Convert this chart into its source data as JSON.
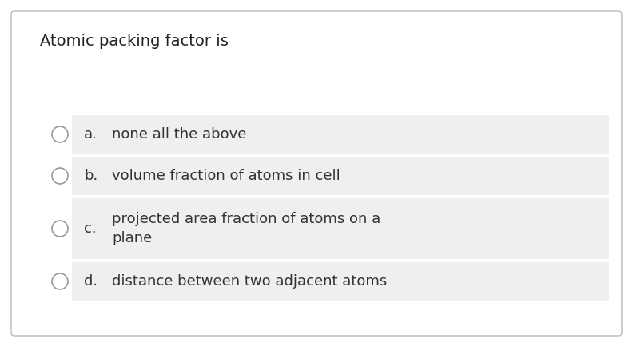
{
  "title": "Atomic packing factor is",
  "options": [
    {
      "label": "a.",
      "text": "none all the above"
    },
    {
      "label": "b.",
      "text": "volume fraction of atoms in cell"
    },
    {
      "label": "c.",
      "text": "projected area fraction of atoms on a\nplane"
    },
    {
      "label": "d.",
      "text": "distance between two adjacent atoms"
    }
  ],
  "bg_color": "#ffffff",
  "border_color": "#bbbbbb",
  "option_bg_color": "#efefef",
  "title_color": "#222222",
  "option_text_color": "#333333",
  "label_color": "#333333",
  "circle_edge_color": "#999999",
  "title_fontsize": 14,
  "option_fontsize": 13,
  "fig_width": 7.92,
  "fig_height": 4.34,
  "dpi": 100
}
